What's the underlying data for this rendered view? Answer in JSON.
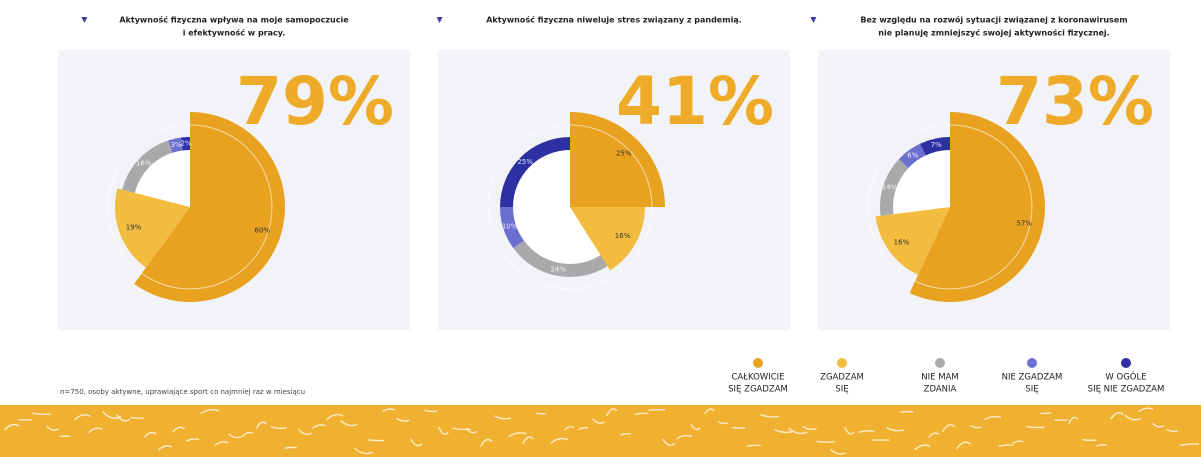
{
  "chart_data": [
    {
      "type": "pie",
      "title": [
        "Aktywność fizyczna wpływa na moje samopoczucie",
        "i efektywność w pracy."
      ],
      "headline": "79%",
      "values": [
        60,
        19,
        16,
        3,
        2
      ],
      "value_labels": [
        "60%",
        "19%",
        "16%",
        "3%",
        "2%"
      ]
    },
    {
      "type": "pie",
      "title": [
        "Aktywność fizyczna niweluje stres związany z pandemią."
      ],
      "headline": "41%",
      "values": [
        25,
        16,
        24,
        10,
        25
      ],
      "value_labels": [
        "25%",
        "16%",
        "24%",
        "10%",
        "25%"
      ]
    },
    {
      "type": "pie",
      "title": [
        "Bez względu na rozwój sytuacji związanej z koronawirusem",
        "nie planuję zmniejszyć swojej aktywności fizycznej."
      ],
      "headline": "73%",
      "values": [
        57,
        16,
        14,
        6,
        7
      ],
      "value_labels": [
        "57%",
        "16%",
        "14%",
        "6%",
        "7%"
      ]
    }
  ],
  "legend": {
    "labels": [
      [
        "CAŁKOWICIE",
        "SIĘ ZGADZAM"
      ],
      [
        "ZGADZAM",
        "SIĘ"
      ],
      [
        "NIE MAM",
        "ZDANIA"
      ],
      [
        "NIE ZGADZAM",
        "SIĘ"
      ],
      [
        "W OGÓLE",
        "SIĘ NIE ZGADZAM"
      ]
    ],
    "colors": [
      "#e8a21f",
      "#f2bc3e",
      "#a9a9ab",
      "#6a6fd0",
      "#2d2fa3"
    ]
  },
  "footnote": "n=750, osoby aktywne, uprawiające sport co najmniej raz w miesiącu"
}
